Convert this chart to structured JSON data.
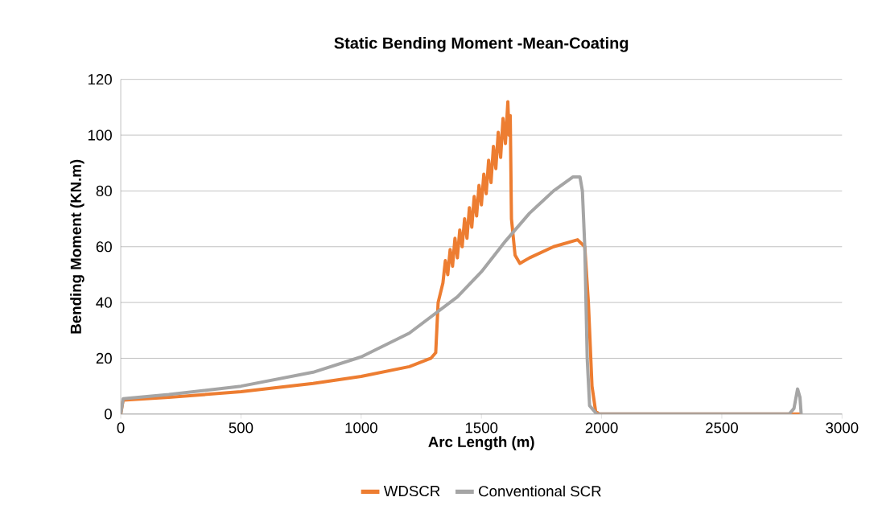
{
  "chart_data": {
    "type": "line",
    "title": "Static Bending Moment -Mean-Coating",
    "xlabel": "Arc Length (m)",
    "ylabel": "Bending Moment (KN.m)",
    "xlim": [
      0,
      3000
    ],
    "ylim": [
      0,
      120
    ],
    "xticks": [
      0,
      500,
      1000,
      1500,
      2000,
      2500,
      3000
    ],
    "yticks": [
      0,
      20,
      40,
      60,
      80,
      100,
      120
    ],
    "grid": "y",
    "legend": "bottom",
    "marker": "none",
    "line_style": "solid",
    "series": [
      {
        "name": "WDSCR",
        "color": "#ed7d31",
        "x": [
          0,
          10,
          200,
          500,
          800,
          1000,
          1200,
          1290,
          1310,
          1320,
          1340,
          1350,
          1360,
          1370,
          1380,
          1390,
          1400,
          1410,
          1420,
          1430,
          1440,
          1450,
          1460,
          1470,
          1480,
          1490,
          1500,
          1510,
          1520,
          1530,
          1540,
          1550,
          1560,
          1570,
          1580,
          1590,
          1600,
          1610,
          1615,
          1620,
          1625,
          1640,
          1660,
          1700,
          1800,
          1900,
          1930,
          1945,
          1960,
          1975,
          1990,
          2830
        ],
        "values": [
          0,
          5,
          6,
          8,
          11,
          13.5,
          17,
          20,
          22,
          40,
          47,
          55,
          50,
          59,
          53,
          63,
          56,
          66,
          60,
          70,
          63,
          74,
          67,
          78,
          71,
          82,
          75,
          86,
          79,
          91,
          83,
          96,
          88,
          101,
          92,
          106,
          97,
          112,
          100,
          107,
          70,
          57,
          54,
          56,
          60,
          62.5,
          60,
          40,
          10,
          1,
          0,
          0
        ]
      },
      {
        "name": "Conventional SCR",
        "color": "#a5a5a5",
        "x": [
          0,
          10,
          200,
          500,
          800,
          1000,
          1200,
          1400,
          1500,
          1600,
          1700,
          1800,
          1880,
          1910,
          1920,
          1930,
          1940,
          1950,
          1980,
          2780,
          2800,
          2815,
          2825,
          2830
        ],
        "values": [
          0,
          5.5,
          7,
          10,
          15,
          20.5,
          29,
          42,
          51,
          62,
          72,
          80,
          85,
          85,
          80,
          60,
          20,
          3,
          0,
          0,
          2,
          9,
          6,
          0
        ]
      }
    ]
  }
}
